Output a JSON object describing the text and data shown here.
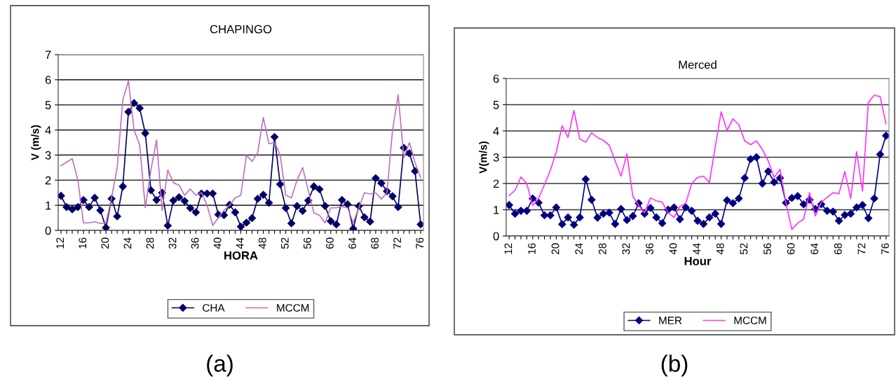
{
  "chart_data": [
    {
      "type": "line",
      "title": "CHAPINGO",
      "xlabel": "HORA",
      "ylabel": "V (m/s)",
      "categories": [
        "12",
        null,
        null,
        null,
        "16",
        null,
        null,
        null,
        "20",
        null,
        null,
        null,
        "24",
        null,
        null,
        null,
        "28",
        null,
        null,
        null,
        "32",
        null,
        null,
        null,
        "36",
        null,
        null,
        null,
        "40",
        null,
        null,
        null,
        "44",
        null,
        null,
        null,
        "48",
        null,
        null,
        null,
        "52",
        null,
        null,
        null,
        "56",
        null,
        null,
        null,
        "60",
        null,
        null,
        null,
        "64",
        null,
        null,
        null,
        "68",
        null,
        null,
        null,
        "72",
        null,
        null,
        null,
        "76"
      ],
      "series": [
        {
          "name": "CHA",
          "color": "#000066",
          "marker": "diamond",
          "values": [
            1.38,
            0.93,
            0.84,
            0.93,
            1.21,
            0.93,
            1.3,
            0.8,
            0.11,
            1.26,
            0.56,
            1.75,
            4.72,
            5.07,
            4.87,
            3.87,
            1.6,
            1.21,
            1.5,
            0.19,
            1.19,
            1.32,
            1.17,
            0.89,
            0.72,
            1.47,
            1.47,
            1.47,
            0.63,
            0.61,
            1.02,
            0.72,
            0.15,
            0.31,
            0.49,
            1.26,
            1.42,
            1.1,
            3.72,
            1.84,
            0.89,
            0.28,
            0.97,
            0.78,
            1.19,
            1.75,
            1.64,
            0.97,
            0.37,
            0.24,
            1.21,
            1.04,
            0.07,
            0.97,
            0.52,
            0.35,
            2.08,
            1.88,
            1.56,
            1.36,
            0.93,
            3.29,
            3.07,
            2.36,
            0.24
          ]
        },
        {
          "name": "MCCM",
          "color": "#c071b8",
          "marker": "none",
          "values": [
            2.58,
            2.72,
            2.86,
            2.0,
            0.3,
            0.3,
            0.35,
            0.28,
            0.3,
            1.3,
            2.5,
            5.2,
            5.95,
            4.0,
            3.4,
            0.91,
            2.4,
            3.6,
            0.8,
            2.4,
            1.9,
            1.8,
            1.4,
            1.65,
            1.4,
            1.5,
            1.0,
            0.2,
            0.5,
            0.8,
            1.0,
            1.3,
            1.4,
            3.0,
            2.75,
            3.1,
            4.5,
            3.45,
            3.5,
            3.0,
            1.4,
            1.3,
            2.0,
            2.5,
            1.6,
            0.7,
            0.6,
            0.3,
            0.9,
            0.9,
            0.95,
            0.9,
            0.3,
            0.9,
            1.5,
            1.45,
            1.5,
            1.25,
            1.5,
            4.0,
            5.4,
            2.9,
            3.5,
            2.7,
            2.1
          ]
        }
      ],
      "ylim": [
        0,
        7
      ],
      "yticks": [
        0,
        1,
        2,
        3,
        4,
        5,
        6,
        7
      ],
      "grid": "y",
      "legend": "bottom",
      "annotations": [
        "(a)"
      ]
    },
    {
      "type": "line",
      "title": "Merced",
      "xlabel": "Hour",
      "ylabel": "V(m/s)",
      "categories": [
        "12",
        null,
        null,
        null,
        "16",
        null,
        null,
        null,
        "20",
        null,
        null,
        null,
        "24",
        null,
        null,
        null,
        "28",
        null,
        null,
        null,
        "32",
        null,
        null,
        null,
        "36",
        null,
        null,
        null,
        "40",
        null,
        null,
        null,
        "44",
        null,
        null,
        null,
        "48",
        null,
        null,
        null,
        "52",
        null,
        null,
        null,
        "56",
        null,
        null,
        null,
        "60",
        null,
        null,
        null,
        "64",
        null,
        null,
        null,
        "68",
        null,
        null,
        null,
        "72",
        null,
        null,
        null,
        "76"
      ],
      "series": [
        {
          "name": "MER",
          "color": "#000080",
          "marker": "diamond",
          "values": [
            1.18,
            0.85,
            0.96,
            0.96,
            1.43,
            1.27,
            0.79,
            0.79,
            1.09,
            0.45,
            0.71,
            0.43,
            0.71,
            2.16,
            1.38,
            0.7,
            0.85,
            0.89,
            0.46,
            1.03,
            0.61,
            0.76,
            1.25,
            0.85,
            1.07,
            0.71,
            0.49,
            1.0,
            1.09,
            0.64,
            1.09,
            0.96,
            0.58,
            0.46,
            0.71,
            0.85,
            0.46,
            1.36,
            1.25,
            1.43,
            2.21,
            2.93,
            3.0,
            2.0,
            2.46,
            2.05,
            2.21,
            1.27,
            1.45,
            1.52,
            1.21,
            1.38,
            1.03,
            1.21,
            0.96,
            0.93,
            0.58,
            0.8,
            0.85,
            1.09,
            1.18,
            0.68,
            1.43,
            3.11,
            3.82
          ]
        },
        {
          "name": "MCCM",
          "color": "#ff33ff",
          "marker": "none",
          "values": [
            1.54,
            1.74,
            2.25,
            2.0,
            1.16,
            1.43,
            1.96,
            2.5,
            3.2,
            4.2,
            3.75,
            4.78,
            3.7,
            3.57,
            3.93,
            3.75,
            3.64,
            3.46,
            2.86,
            2.28,
            3.13,
            1.52,
            1.16,
            0.89,
            1.45,
            1.34,
            1.29,
            0.89,
            0.71,
            1.12,
            1.25,
            2.0,
            2.23,
            2.28,
            2.04,
            3.39,
            4.73,
            4.02,
            4.46,
            4.24,
            3.62,
            3.48,
            3.62,
            3.3,
            2.86,
            2.23,
            2.54,
            1.25,
            0.25,
            0.49,
            0.64,
            1.65,
            0.76,
            1.29,
            1.47,
            1.65,
            1.61,
            2.46,
            1.43,
            3.21,
            1.71,
            5.09,
            5.36,
            5.31,
            4.27
          ]
        }
      ],
      "ylim": [
        0,
        6
      ],
      "yticks": [
        0,
        1,
        2,
        3,
        4,
        5,
        6
      ],
      "grid": "y",
      "legend": "bottom",
      "annotations": [
        "(b)"
      ]
    }
  ]
}
